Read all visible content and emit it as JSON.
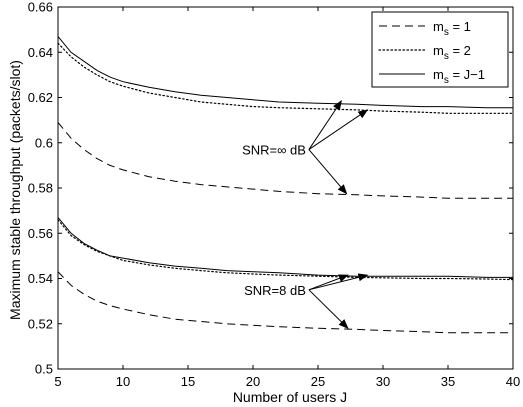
{
  "chart_data": {
    "type": "line",
    "title": "",
    "xlabel": "Number of users J",
    "ylabel": "Maximum stable throughput (packets/slot)",
    "xlim": [
      5,
      40
    ],
    "ylim": [
      0.5,
      0.66
    ],
    "xticks": [
      5,
      10,
      15,
      20,
      25,
      30,
      35,
      40
    ],
    "yticks": [
      0.5,
      0.52,
      0.54,
      0.56,
      0.58,
      0.6,
      0.62,
      0.64,
      0.66
    ],
    "grid": false,
    "legend": {
      "placement": "top-right",
      "entries": [
        {
          "base": "m",
          "sub": "s",
          "rest": " = 1",
          "style": "dashed"
        },
        {
          "base": "m",
          "sub": "s",
          "rest": " = 2",
          "style": "dotted"
        },
        {
          "base": "m",
          "sub": "s",
          "rest": " = J−1",
          "style": "solid"
        }
      ]
    },
    "x": [
      5,
      6,
      7,
      8,
      9,
      10,
      12,
      14,
      16,
      18,
      20,
      22,
      25,
      28,
      30,
      33,
      35,
      38,
      40
    ],
    "series": [
      {
        "group": "inf",
        "style": "dashed",
        "values": [
          0.609,
          0.602,
          0.597,
          0.593,
          0.59,
          0.588,
          0.585,
          0.583,
          0.5815,
          0.5805,
          0.5795,
          0.5785,
          0.5775,
          0.577,
          0.5765,
          0.576,
          0.5755,
          0.5755,
          0.5755
        ]
      },
      {
        "group": "inf",
        "style": "dotted",
        "values": [
          0.644,
          0.638,
          0.6335,
          0.63,
          0.627,
          0.625,
          0.622,
          0.62,
          0.618,
          0.617,
          0.616,
          0.6155,
          0.615,
          0.6145,
          0.614,
          0.6135,
          0.613,
          0.613,
          0.613
        ]
      },
      {
        "group": "inf",
        "style": "solid",
        "values": [
          0.647,
          0.64,
          0.636,
          0.632,
          0.629,
          0.627,
          0.6245,
          0.6225,
          0.621,
          0.62,
          0.619,
          0.618,
          0.6175,
          0.617,
          0.6165,
          0.616,
          0.616,
          0.6155,
          0.6155
        ]
      },
      {
        "group": "8",
        "style": "dashed",
        "values": [
          0.543,
          0.537,
          0.533,
          0.53,
          0.528,
          0.5265,
          0.524,
          0.522,
          0.521,
          0.52,
          0.5193,
          0.5187,
          0.518,
          0.5175,
          0.517,
          0.5165,
          0.516,
          0.516,
          0.516
        ]
      },
      {
        "group": "8",
        "style": "dotted",
        "values": [
          0.566,
          0.559,
          0.555,
          0.552,
          0.55,
          0.548,
          0.546,
          0.5445,
          0.5435,
          0.5425,
          0.542,
          0.5415,
          0.541,
          0.5405,
          0.5403,
          0.54,
          0.54,
          0.5398,
          0.5395
        ]
      },
      {
        "group": "8",
        "style": "solid",
        "values": [
          0.567,
          0.56,
          0.5555,
          0.5525,
          0.55,
          0.549,
          0.547,
          0.5455,
          0.5445,
          0.5435,
          0.543,
          0.5425,
          0.5415,
          0.541,
          0.541,
          0.541,
          0.541,
          0.5405,
          0.5405
        ]
      }
    ],
    "annotations": [
      {
        "text": "SNR=∞ dB",
        "anchor": [
          24.3,
          0.597
        ],
        "targets": [
          [
            26.8,
            0.6185
          ],
          [
            28.8,
            0.6145
          ],
          [
            27.2,
            0.5775
          ]
        ]
      },
      {
        "text": "SNR=8 dB",
        "anchor": [
          24.3,
          0.535
        ],
        "targets": [
          [
            27.3,
            0.5415
          ],
          [
            28.8,
            0.5415
          ],
          [
            27.3,
            0.518
          ]
        ]
      }
    ]
  }
}
